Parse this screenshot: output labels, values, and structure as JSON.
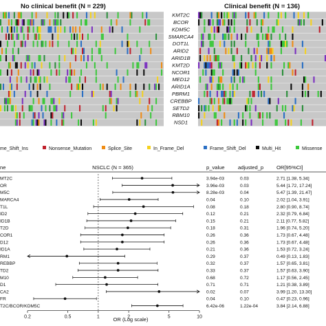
{
  "colors": {
    "matrix_bg": "#c8c8c8",
    "cell_sep": "#d4d4d4",
    "frame_shift_ins": "#2a8f3a",
    "nonsense_mutation": "#c0202c",
    "splice_site": "#f08c14",
    "in_frame_del": "#f5d21e",
    "frame_shift_del": "#2a6fc4",
    "multi_hit": "#0a0a0a",
    "missense": "#3cc83c",
    "purple": "#7a2ec0"
  },
  "oncoplot": {
    "left_title": "No clinical benefit (N = 229)",
    "right_title": "Clinical benefit (N = 136)",
    "genes": [
      "KMT2C",
      "BCOR",
      "KDM5C",
      "SMARCA4",
      "DOT1L",
      "ARID2",
      "ARID1B",
      "KMT2D",
      "NCOR1",
      "MED12",
      "ARID1A",
      "PBRM1",
      "CREBBP",
      "SETD2",
      "RBM10",
      "NSD1"
    ],
    "legend": [
      {
        "label": "me_Shift_Ins",
        "color_key": "frame_shift_ins"
      },
      {
        "label": "Nonsense_Mutation",
        "color_key": "nonsense_mutation"
      },
      {
        "label": "Splice_Site",
        "color_key": "splice_site"
      },
      {
        "label": "In_Frame_Del",
        "color_key": "in_frame_del"
      },
      {
        "label": "Frame_Shift_Del",
        "color_key": "frame_shift_del"
      },
      {
        "label": "Multi_Hit",
        "color_key": "multi_hit"
      },
      {
        "label": "Missense",
        "color_key": "missense"
      }
    ]
  },
  "forest": {
    "col_gene": "ne",
    "title": "NSCLC (N = 365)",
    "col_p": "p_value",
    "col_adjp": "adjusted_p",
    "col_or": "OR[95%CI]",
    "xlabel": "OR (Log scale)"
  },
  "chart_data": {
    "type": "forest",
    "title": "NSCLC (N = 365)",
    "xlabel": "OR (Log scale)",
    "x_scale": "log",
    "xlim": [
      0.2,
      10
    ],
    "x_ticks": [
      "0.2",
      "0.5",
      "1",
      "2",
      "5",
      "10"
    ],
    "reference_line": 1,
    "rows": [
      {
        "label": "MT2C",
        "p_value": "3.94e-03",
        "adjusted_p": "0.03",
        "or": 2.71,
        "lo": 1.38,
        "hi": 5.34,
        "or_text": "2.71 [1.38, 5.34]"
      },
      {
        "label": "OR",
        "p_value": "3.96e-03",
        "adjusted_p": "0.03",
        "or": 5.44,
        "lo": 1.72,
        "hi": 17.24,
        "or_text": "5.44 [1.72, 17.24]"
      },
      {
        "label": "M5C",
        "p_value": "8.28e-03",
        "adjusted_p": "0.04",
        "or": 5.47,
        "lo": 1.39,
        "hi": 21.47,
        "or_text": "5.47 [1.39, 21.47]"
      },
      {
        "label": "MARCA4",
        "p_value": "0.04",
        "adjusted_p": "0.10",
        "or": 2.02,
        "lo": 1.04,
        "hi": 3.91,
        "or_text": "2.02 [1.04, 3.91]"
      },
      {
        "label": "T1L",
        "p_value": "0.08",
        "adjusted_p": "0.18",
        "or": 2.8,
        "lo": 0.9,
        "hi": 8.74,
        "or_text": "2.80 [0.90, 8.74]"
      },
      {
        "label": "ID2",
        "p_value": "0.12",
        "adjusted_p": "0.21",
        "or": 2.32,
        "lo": 0.79,
        "hi": 6.84,
        "or_text": "2.32 [0.79, 6.84]"
      },
      {
        "label": "ID1B",
        "p_value": "0.15",
        "adjusted_p": "0.21",
        "or": 2.11,
        "lo": 0.77,
        "hi": 5.82,
        "or_text": "2.11 [0.77, 5.82]"
      },
      {
        "label": "T2D",
        "p_value": "0.18",
        "adjusted_p": "0.31",
        "or": 1.96,
        "lo": 0.74,
        "hi": 5.2,
        "or_text": "1.96 [0.74, 5.20]"
      },
      {
        "label": "COR1",
        "p_value": "0.26",
        "adjusted_p": "0.36",
        "or": 1.73,
        "lo": 0.67,
        "hi": 4.48,
        "or_text": "1.73 [0.67, 4.48]"
      },
      {
        "label": "D12",
        "p_value": "0.26",
        "adjusted_p": "0.36",
        "or": 1.73,
        "lo": 0.67,
        "hi": 4.48,
        "or_text": "1.73 [0.67, 4.48]"
      },
      {
        "label": "ID1A",
        "p_value": "0.21",
        "adjusted_p": "0.36",
        "or": 1.53,
        "lo": 0.72,
        "hi": 3.24,
        "or_text": "1.53 [0.72, 3.24]"
      },
      {
        "label": "RM1",
        "p_value": "0.29",
        "adjusted_p": "0.37",
        "or": 0.49,
        "lo": 0.13,
        "hi": 1.83,
        "or_text": "0.49 [0.13, 1.83]"
      },
      {
        "label": "REBBP",
        "p_value": "0.32",
        "adjusted_p": "0.37",
        "or": 1.57,
        "or_lo_note": "",
        "lo": 0.65,
        "hi": 3.81,
        "or_text": "1.57 [0.65, 3.81]"
      },
      {
        "label": "TD2",
        "p_value": "0.33",
        "adjusted_p": "0.37",
        "or": 1.57,
        "lo": 0.63,
        "hi": 3.9,
        "or_text": "1.57 [0.63, 3.90]"
      },
      {
        "label": "M10",
        "p_value": "0.68",
        "adjusted_p": "0.72",
        "or": 1.17,
        "lo": 0.56,
        "hi": 2.45,
        "or_text": "1.17 [0.56, 2.45]"
      },
      {
        "label": "D1",
        "p_value": "0.71",
        "adjusted_p": "0.71",
        "or": 1.21,
        "lo": 0.38,
        "hi": 3.89,
        "or_text": "1.21 [0.38, 3.89]"
      },
      {
        "label": "CA2",
        "p_value": "0.02",
        "adjusted_p": "0.07",
        "or": 3.99,
        "lo": 1.2,
        "hi": 13.3,
        "or_text": "3.99 [1.20, 13.30]"
      },
      {
        "label": "FR",
        "p_value": "0.04",
        "adjusted_p": "0.10",
        "or": 0.47,
        "lo": 0.23,
        "hi": 0.96,
        "or_text": "0.47 [0.23, 0.96]"
      },
      {
        "label": "T2C/BCOR/KDM5C",
        "p_value": "6.42e-06",
        "adjusted_p": "1.22e-04",
        "or": 3.84,
        "lo": 2.14,
        "hi": 6.88,
        "or_text": "3.84 [2.14, 6.88]"
      }
    ]
  }
}
